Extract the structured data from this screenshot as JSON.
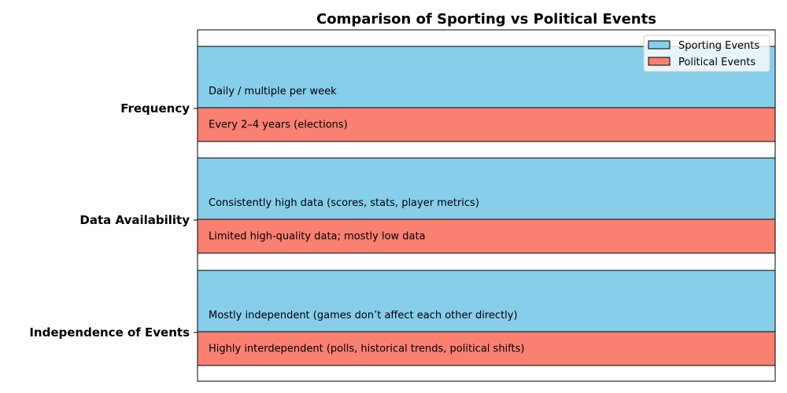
{
  "chart_data": {
    "type": "bar",
    "orientation": "horizontal",
    "title": "Comparison of Sporting vs Political Events",
    "xlabel": "",
    "ylabel": "",
    "xlim": [
      0,
      1
    ],
    "x_axis_visible": false,
    "grid": false,
    "legend_position": "top-right",
    "categories": [
      "Frequency",
      "Data Availability",
      "Independence of Events"
    ],
    "series": [
      {
        "name": "Sporting Events",
        "color": "#87CEEB",
        "values": [
          1,
          1,
          1
        ],
        "labels": [
          "Daily / multiple per week",
          "Consistently high data (scores, stats, player metrics)",
          "Mostly independent (games don’t affect each other directly)"
        ]
      },
      {
        "name": "Political Events",
        "color": "#FA8072",
        "values": [
          1,
          1,
          1
        ],
        "labels": [
          "Every 2–4 years (elections)",
          "Limited high-quality data; mostly low data",
          "Highly interdependent (polls, historical trends, political shifts)"
        ]
      }
    ]
  }
}
